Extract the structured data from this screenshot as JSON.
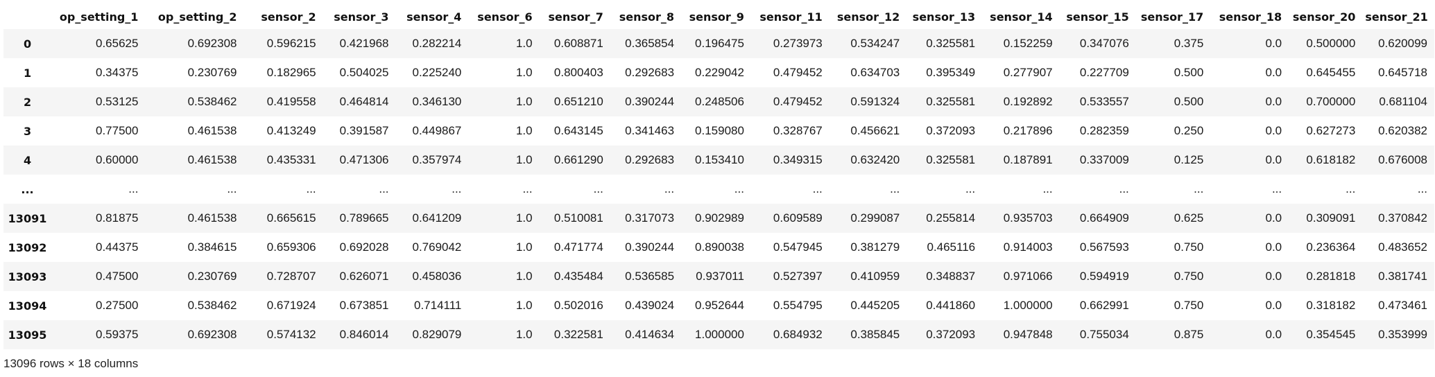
{
  "table": {
    "index_header": "",
    "columns": [
      "op_setting_1",
      "op_setting_2",
      "sensor_2",
      "sensor_3",
      "sensor_4",
      "sensor_6",
      "sensor_7",
      "sensor_8",
      "sensor_9",
      "sensor_11",
      "sensor_12",
      "sensor_13",
      "sensor_14",
      "sensor_15",
      "sensor_17",
      "sensor_18",
      "sensor_20",
      "sensor_21"
    ],
    "rows": [
      {
        "index": "0",
        "cells": [
          "0.65625",
          "0.692308",
          "0.596215",
          "0.421968",
          "0.282214",
          "1.0",
          "0.608871",
          "0.365854",
          "0.196475",
          "0.273973",
          "0.534247",
          "0.325581",
          "0.152259",
          "0.347076",
          "0.375",
          "0.0",
          "0.500000",
          "0.620099"
        ]
      },
      {
        "index": "1",
        "cells": [
          "0.34375",
          "0.230769",
          "0.182965",
          "0.504025",
          "0.225240",
          "1.0",
          "0.800403",
          "0.292683",
          "0.229042",
          "0.479452",
          "0.634703",
          "0.395349",
          "0.277907",
          "0.227709",
          "0.500",
          "0.0",
          "0.645455",
          "0.645718"
        ]
      },
      {
        "index": "2",
        "cells": [
          "0.53125",
          "0.538462",
          "0.419558",
          "0.464814",
          "0.346130",
          "1.0",
          "0.651210",
          "0.390244",
          "0.248506",
          "0.479452",
          "0.591324",
          "0.325581",
          "0.192892",
          "0.533557",
          "0.500",
          "0.0",
          "0.700000",
          "0.681104"
        ]
      },
      {
        "index": "3",
        "cells": [
          "0.77500",
          "0.461538",
          "0.413249",
          "0.391587",
          "0.449867",
          "1.0",
          "0.643145",
          "0.341463",
          "0.159080",
          "0.328767",
          "0.456621",
          "0.372093",
          "0.217896",
          "0.282359",
          "0.250",
          "0.0",
          "0.627273",
          "0.620382"
        ]
      },
      {
        "index": "4",
        "cells": [
          "0.60000",
          "0.461538",
          "0.435331",
          "0.471306",
          "0.357974",
          "1.0",
          "0.661290",
          "0.292683",
          "0.153410",
          "0.349315",
          "0.632420",
          "0.325581",
          "0.187891",
          "0.337009",
          "0.125",
          "0.0",
          "0.618182",
          "0.676008"
        ]
      },
      {
        "index": "...",
        "cells": [
          "...",
          "...",
          "...",
          "...",
          "...",
          "...",
          "...",
          "...",
          "...",
          "...",
          "...",
          "...",
          "...",
          "...",
          "...",
          "...",
          "...",
          "..."
        ]
      },
      {
        "index": "13091",
        "cells": [
          "0.81875",
          "0.461538",
          "0.665615",
          "0.789665",
          "0.641209",
          "1.0",
          "0.510081",
          "0.317073",
          "0.902989",
          "0.609589",
          "0.299087",
          "0.255814",
          "0.935703",
          "0.664909",
          "0.625",
          "0.0",
          "0.309091",
          "0.370842"
        ]
      },
      {
        "index": "13092",
        "cells": [
          "0.44375",
          "0.384615",
          "0.659306",
          "0.692028",
          "0.769042",
          "1.0",
          "0.471774",
          "0.390244",
          "0.890038",
          "0.547945",
          "0.381279",
          "0.465116",
          "0.914003",
          "0.567593",
          "0.750",
          "0.0",
          "0.236364",
          "0.483652"
        ]
      },
      {
        "index": "13093",
        "cells": [
          "0.47500",
          "0.230769",
          "0.728707",
          "0.626071",
          "0.458036",
          "1.0",
          "0.435484",
          "0.536585",
          "0.937011",
          "0.527397",
          "0.410959",
          "0.348837",
          "0.971066",
          "0.594919",
          "0.750",
          "0.0",
          "0.281818",
          "0.381741"
        ]
      },
      {
        "index": "13094",
        "cells": [
          "0.27500",
          "0.538462",
          "0.671924",
          "0.673851",
          "0.714111",
          "1.0",
          "0.502016",
          "0.439024",
          "0.952644",
          "0.554795",
          "0.445205",
          "0.441860",
          "1.000000",
          "0.662991",
          "0.750",
          "0.0",
          "0.318182",
          "0.473461"
        ]
      },
      {
        "index": "13095",
        "cells": [
          "0.59375",
          "0.692308",
          "0.574132",
          "0.846014",
          "0.829079",
          "1.0",
          "0.322581",
          "0.414634",
          "1.000000",
          "0.684932",
          "0.385845",
          "0.372093",
          "0.947848",
          "0.755034",
          "0.875",
          "0.0",
          "0.354545",
          "0.353999"
        ]
      }
    ]
  },
  "footer": {
    "shape_text": "13096 rows × 18 columns"
  }
}
